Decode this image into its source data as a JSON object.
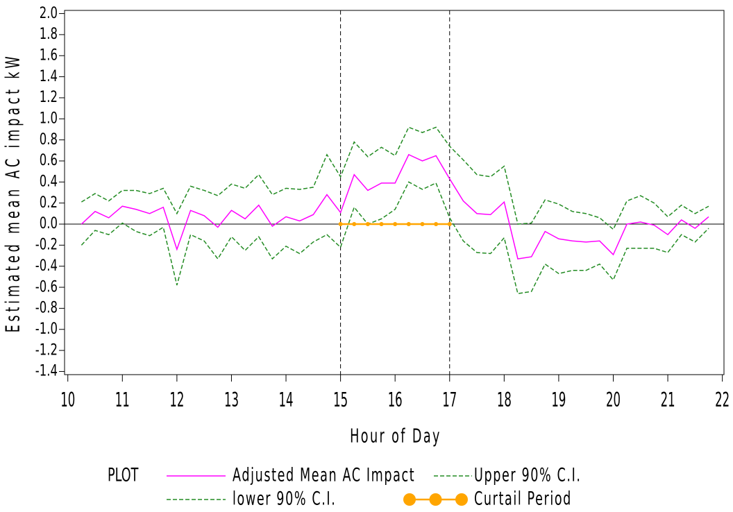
{
  "chart_data": {
    "type": "line",
    "y_label": "Estimated mean AC impact kW",
    "x_label": "Hour of Day",
    "legend_title": "PLOT",
    "xlim": [
      9.94,
      22.03
    ],
    "xticks": [
      10,
      11,
      12,
      13,
      14,
      15,
      16,
      17,
      18,
      19,
      20,
      21,
      22
    ],
    "ylim": [
      -1.43,
      2.03
    ],
    "yticks": [
      {
        "value": 2,
        "label": "2.0"
      },
      1.8,
      1.6,
      1.4,
      1.2,
      {
        "value": 1,
        "label": "1.0"
      },
      0.8,
      0.6,
      0.4,
      0.2,
      {
        "value": 0,
        "label": "0.0"
      },
      -0.2,
      -0.4,
      -0.6,
      -0.8,
      {
        "value": -1,
        "label": "-1.0"
      },
      -1.2,
      -1.4
    ],
    "x_reference_lines": [
      15,
      17
    ],
    "y_reference_lines": [
      0
    ],
    "series": [
      {
        "name": "Adjusted Mean AC Impact",
        "color": "#ff00ff",
        "line_style": "solid",
        "x": [
          10.25,
          10.5,
          10.75,
          11,
          11.25,
          11.5,
          11.75,
          12,
          12.25,
          12.5,
          12.75,
          13,
          13.25,
          13.5,
          13.75,
          14,
          14.25,
          14.5,
          14.75,
          15,
          15.25,
          15.5,
          15.75,
          16,
          16.25,
          16.5,
          16.75,
          17,
          17.25,
          17.5,
          17.75,
          18,
          18.25,
          18.5,
          18.75,
          19,
          19.25,
          19.5,
          19.75,
          20,
          20.25,
          20.5,
          20.75,
          21,
          21.25,
          21.5,
          21.75
        ],
        "values": [
          0.0,
          0.12,
          0.06,
          0.17,
          0.14,
          0.1,
          0.16,
          -0.24,
          0.13,
          0.08,
          -0.03,
          0.13,
          0.05,
          0.18,
          -0.02,
          0.07,
          0.03,
          0.09,
          0.28,
          0.11,
          0.47,
          0.32,
          0.39,
          0.39,
          0.66,
          0.6,
          0.65,
          0.43,
          0.22,
          0.1,
          0.09,
          0.21,
          -0.33,
          -0.31,
          -0.07,
          -0.14,
          -0.16,
          -0.17,
          -0.16,
          -0.29,
          0.0,
          0.02,
          -0.01,
          -0.1,
          0.04,
          -0.04,
          0.07
        ]
      },
      {
        "name": "Upper 90% C.I.",
        "color": "#228b22",
        "line_style": "dashed",
        "x": [
          10.25,
          10.5,
          10.75,
          11,
          11.25,
          11.5,
          11.75,
          12,
          12.25,
          12.5,
          12.75,
          13,
          13.25,
          13.5,
          13.75,
          14,
          14.25,
          14.5,
          14.75,
          15,
          15.25,
          15.5,
          15.75,
          16,
          16.25,
          16.5,
          16.75,
          17,
          17.25,
          17.5,
          17.75,
          18,
          18.25,
          18.5,
          18.75,
          19,
          19.25,
          19.5,
          19.75,
          20,
          20.25,
          20.5,
          20.75,
          21,
          21.25,
          21.5,
          21.75
        ],
        "values": [
          0.21,
          0.29,
          0.22,
          0.32,
          0.32,
          0.29,
          0.34,
          0.1,
          0.36,
          0.32,
          0.27,
          0.38,
          0.34,
          0.47,
          0.28,
          0.34,
          0.33,
          0.35,
          0.66,
          0.45,
          0.78,
          0.64,
          0.73,
          0.65,
          0.92,
          0.87,
          0.92,
          0.74,
          0.61,
          0.47,
          0.45,
          0.55,
          0.0,
          0.01,
          0.23,
          0.19,
          0.12,
          0.1,
          0.06,
          -0.05,
          0.22,
          0.27,
          0.2,
          0.07,
          0.18,
          0.1,
          0.17
        ]
      },
      {
        "name": "lower 90% C.I.",
        "color": "#228b22",
        "line_style": "dashed",
        "x": [
          10.25,
          10.5,
          10.75,
          11,
          11.25,
          11.5,
          11.75,
          12,
          12.25,
          12.5,
          12.75,
          13,
          13.25,
          13.5,
          13.75,
          14,
          14.25,
          14.5,
          14.75,
          15,
          15.25,
          15.5,
          15.75,
          16,
          16.25,
          16.5,
          16.75,
          17,
          17.25,
          17.5,
          17.75,
          18,
          18.25,
          18.5,
          18.75,
          19,
          19.25,
          19.5,
          19.75,
          20,
          20.25,
          20.5,
          20.75,
          21,
          21.25,
          21.5,
          21.75
        ],
        "values": [
          -0.2,
          -0.06,
          -0.1,
          0.01,
          -0.07,
          -0.11,
          -0.03,
          -0.58,
          -0.1,
          -0.16,
          -0.33,
          -0.12,
          -0.25,
          -0.12,
          -0.33,
          -0.21,
          -0.28,
          -0.17,
          -0.1,
          -0.22,
          0.16,
          0.0,
          0.05,
          0.14,
          0.4,
          0.33,
          0.39,
          0.06,
          -0.16,
          -0.27,
          -0.28,
          -0.13,
          -0.66,
          -0.64,
          -0.38,
          -0.47,
          -0.44,
          -0.44,
          -0.38,
          -0.53,
          -0.23,
          -0.23,
          -0.23,
          -0.27,
          -0.1,
          -0.17,
          -0.04
        ]
      },
      {
        "name": "Curtail Period",
        "color": "#ffa500",
        "line_style": "markers",
        "x": [
          15,
          15.25,
          15.5,
          15.75,
          16,
          16.25,
          16.5,
          16.75,
          17
        ],
        "values": [
          0,
          0,
          0,
          0,
          0,
          0,
          0,
          0,
          0
        ]
      }
    ]
  }
}
